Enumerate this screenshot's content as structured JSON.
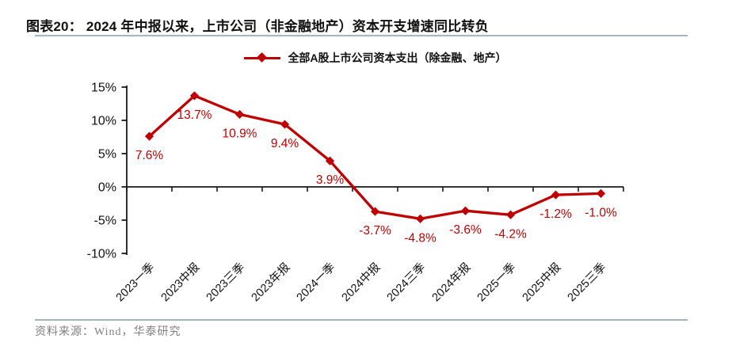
{
  "header": {
    "title": "图表20： 2024 年中报以来，上市公司（非金融地产）资本开支增速同比转负"
  },
  "legend": {
    "label": "全部A股上市公司资本支出（除金融、地产）"
  },
  "chart_data": {
    "type": "line",
    "title": "",
    "xlabel": "",
    "ylabel": "",
    "categories": [
      "2023一季",
      "2023中报",
      "2023三季",
      "2023年报",
      "2024一季",
      "2024中报",
      "2024三季",
      "2024年报",
      "2025一季",
      "2025中报",
      "2025三季"
    ],
    "series": [
      {
        "name": "全部A股上市公司资本支出（除金融、地产）",
        "values": [
          7.6,
          13.7,
          10.9,
          9.4,
          3.9,
          -3.7,
          -4.8,
          -3.6,
          -4.2,
          -1.2,
          -1.0
        ],
        "point_labels": [
          "7.6%",
          "13.7%",
          "10.9%",
          "9.4%",
          "3.9%",
          "-3.7%",
          "-4.8%",
          "-3.6%",
          "-4.2%",
          "-1.2%",
          "-1.0%"
        ],
        "color": "#c00000",
        "marker": "diamond"
      }
    ],
    "ylim": [
      -10,
      15
    ],
    "yticks": [
      15,
      10,
      5,
      0,
      -5,
      -10
    ],
    "ytick_labels": [
      "15%",
      "10%",
      "5%",
      "0%",
      "-5%",
      "-10%"
    ],
    "grid": false,
    "legend_position": "top",
    "x_label_rotation": -45
  },
  "footer": {
    "source": "资料来源：Wind，华泰研究"
  },
  "colors": {
    "series_red": "#c00000",
    "axis_black": "#1a1a1a",
    "title_underline": "#a4b7c9",
    "footer_rule": "#9fb5bc",
    "footer_text": "#808080"
  }
}
